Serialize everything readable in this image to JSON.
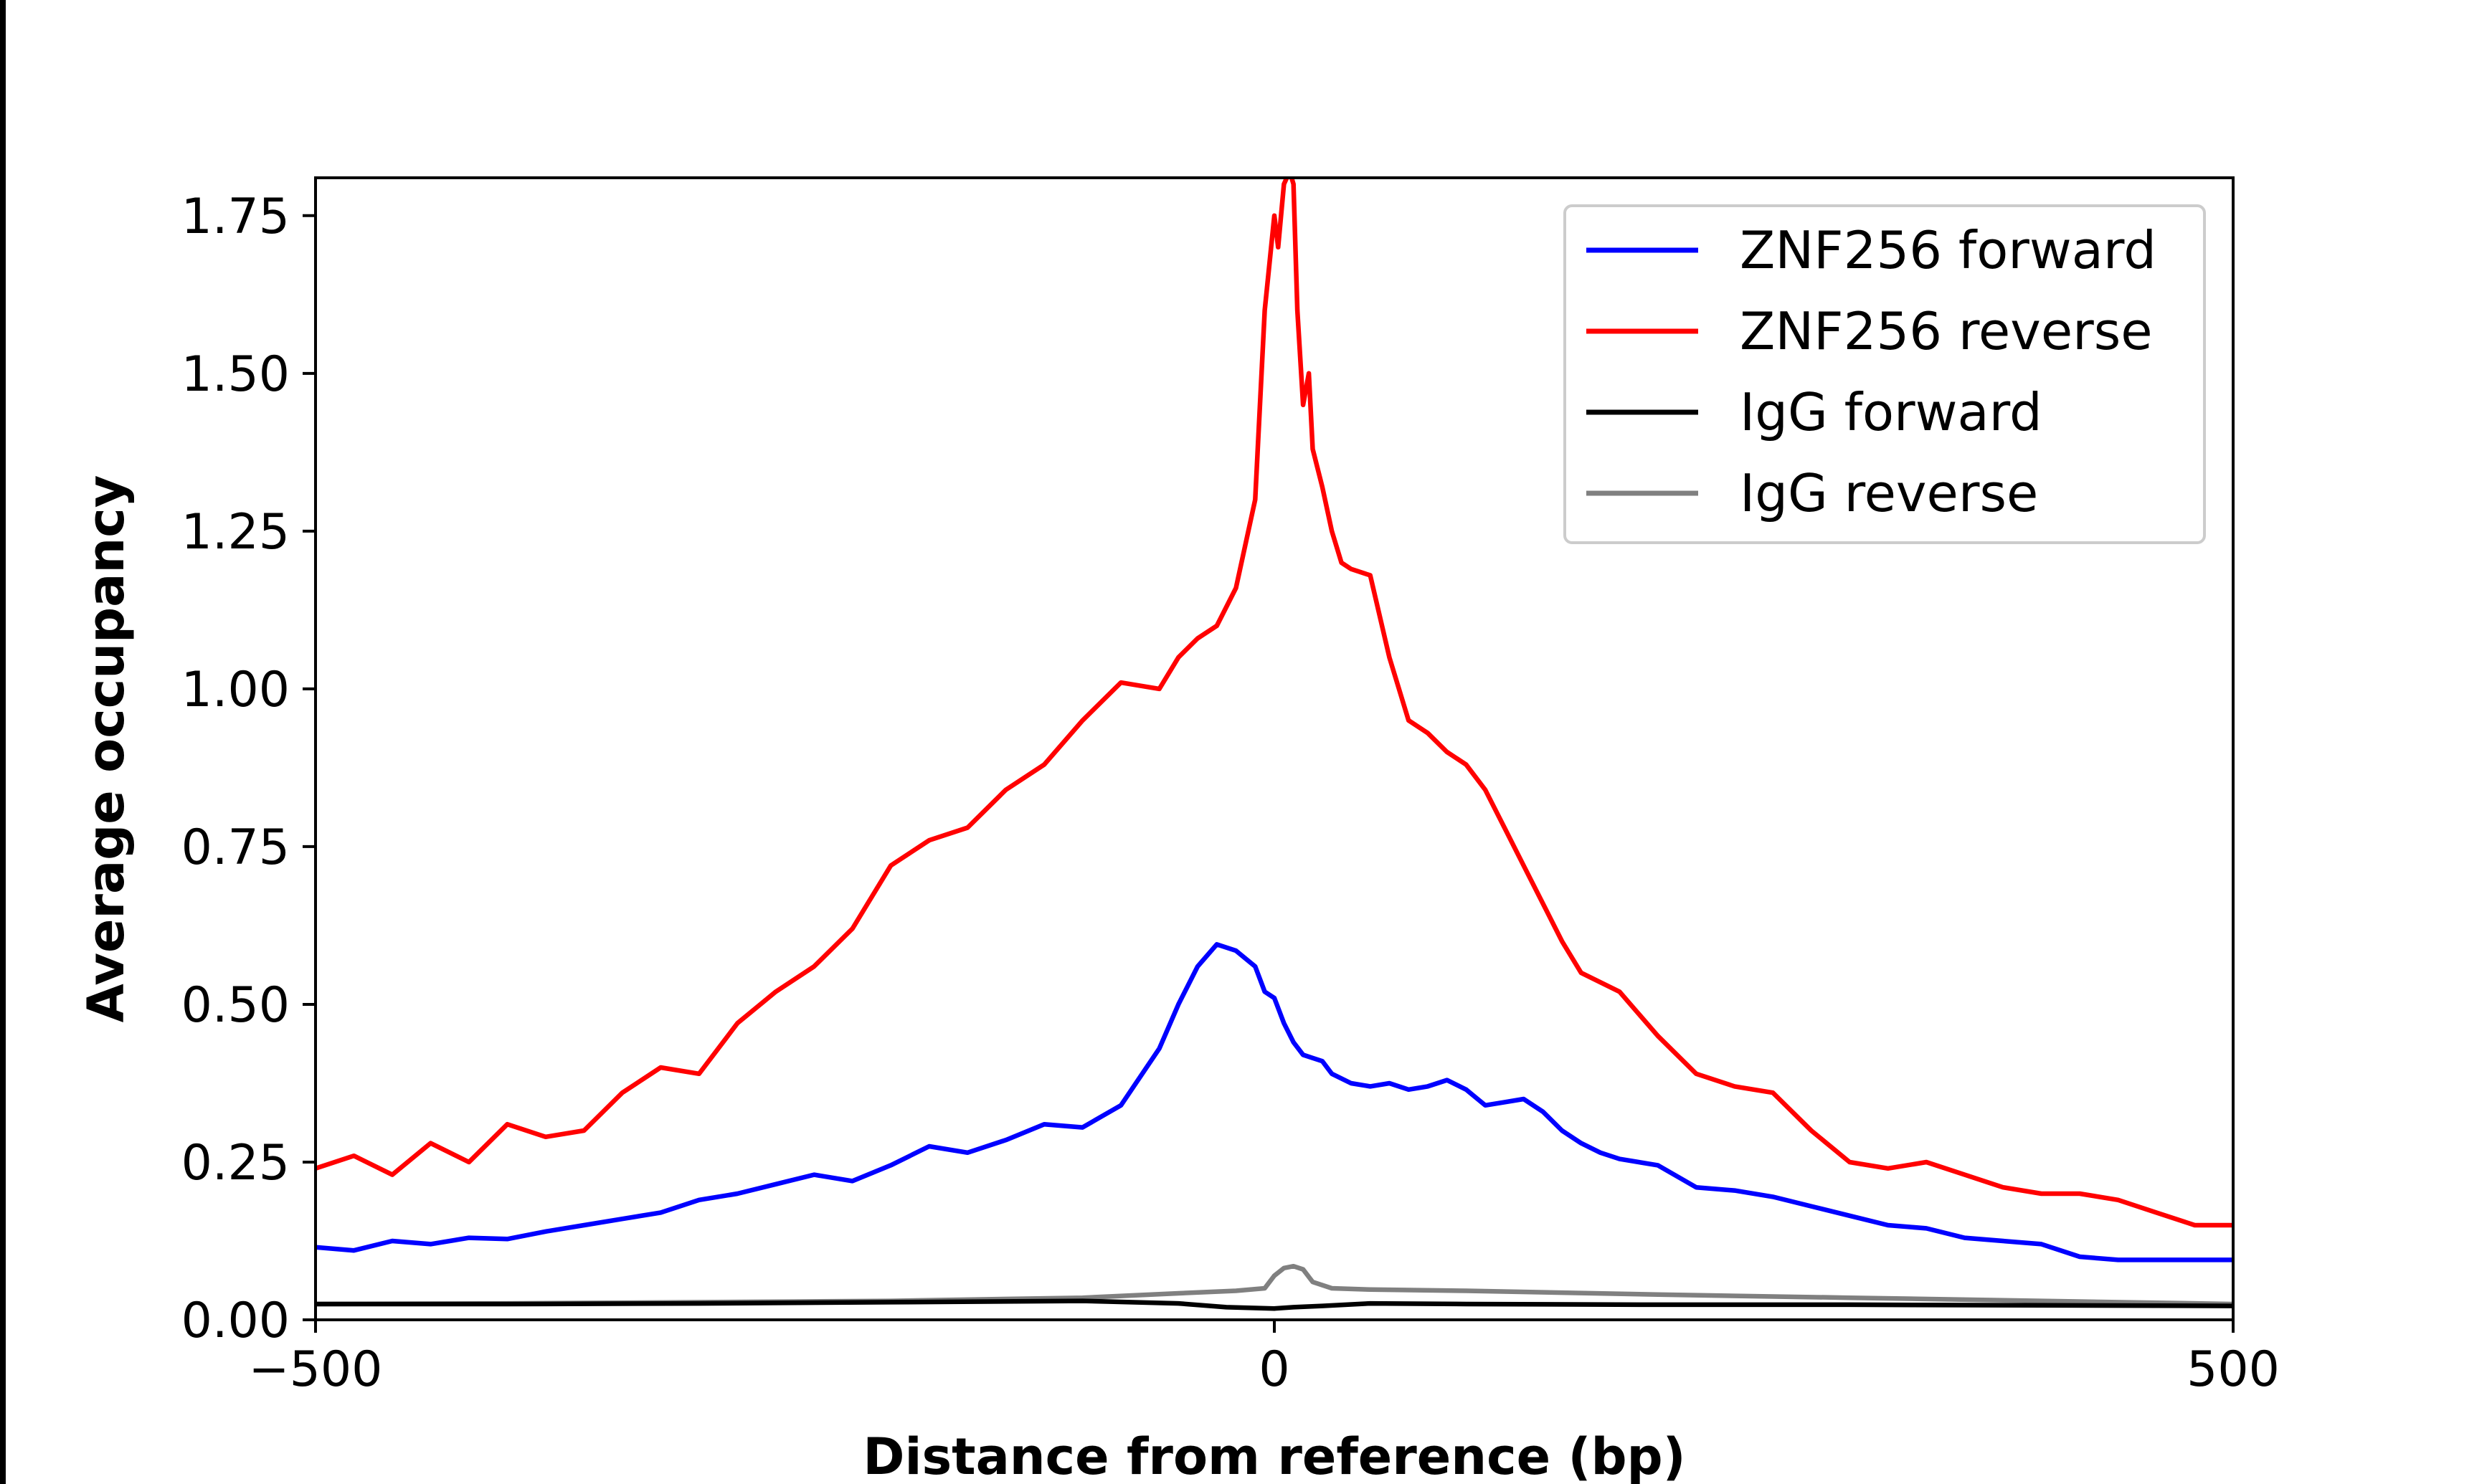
{
  "chart_data": {
    "type": "line",
    "xlabel": "Distance from reference (bp)",
    "ylabel": "Average occupancy",
    "xlim": [
      -500,
      500
    ],
    "ylim": [
      0,
      1.81
    ],
    "xticks": [
      -500,
      0,
      500
    ],
    "xtick_labels": [
      "−500",
      "0",
      "500"
    ],
    "yticks": [
      0,
      0.25,
      0.5,
      0.75,
      1.0,
      1.25,
      1.5,
      1.75
    ],
    "ytick_labels": [
      "0.00",
      "0.25",
      "0.50",
      "0.75",
      "1.00",
      "1.25",
      "1.50",
      "1.75"
    ],
    "grid": false,
    "legend_position": "top-right",
    "series": [
      {
        "name": "ZNF256 forward",
        "color": "#0000ff",
        "x": [
          -500,
          -480,
          -460,
          -440,
          -420,
          -400,
          -380,
          -360,
          -340,
          -320,
          -300,
          -280,
          -260,
          -240,
          -220,
          -200,
          -180,
          -160,
          -140,
          -120,
          -100,
          -80,
          -60,
          -50,
          -40,
          -30,
          -20,
          -10,
          -5,
          0,
          5,
          10,
          15,
          20,
          25,
          30,
          40,
          50,
          60,
          70,
          80,
          90,
          100,
          110,
          120,
          130,
          140,
          150,
          160,
          170,
          180,
          200,
          220,
          240,
          260,
          280,
          300,
          320,
          340,
          360,
          380,
          400,
          420,
          440,
          460,
          480,
          500
        ],
        "y": [
          0.115,
          0.11,
          0.125,
          0.12,
          0.13,
          0.128,
          0.14,
          0.15,
          0.16,
          0.17,
          0.19,
          0.2,
          0.215,
          0.23,
          0.22,
          0.245,
          0.275,
          0.265,
          0.285,
          0.31,
          0.305,
          0.34,
          0.43,
          0.5,
          0.56,
          0.595,
          0.585,
          0.56,
          0.52,
          0.51,
          0.47,
          0.44,
          0.42,
          0.415,
          0.41,
          0.39,
          0.375,
          0.37,
          0.375,
          0.365,
          0.37,
          0.38,
          0.365,
          0.34,
          0.345,
          0.35,
          0.33,
          0.3,
          0.28,
          0.265,
          0.255,
          0.245,
          0.21,
          0.205,
          0.195,
          0.18,
          0.165,
          0.15,
          0.145,
          0.13,
          0.125,
          0.12,
          0.1,
          0.095,
          0.095,
          0.095,
          0.095
        ]
      },
      {
        "name": "ZNF256 reverse",
        "color": "#ff0000",
        "x": [
          -500,
          -480,
          -460,
          -440,
          -420,
          -400,
          -380,
          -360,
          -340,
          -320,
          -300,
          -280,
          -260,
          -240,
          -220,
          -200,
          -180,
          -160,
          -140,
          -120,
          -100,
          -80,
          -60,
          -50,
          -40,
          -30,
          -20,
          -10,
          -5,
          0,
          2,
          5,
          8,
          10,
          12,
          15,
          18,
          20,
          25,
          30,
          35,
          40,
          50,
          60,
          70,
          80,
          90,
          100,
          110,
          120,
          130,
          140,
          150,
          160,
          180,
          200,
          220,
          240,
          260,
          280,
          300,
          320,
          340,
          360,
          380,
          400,
          420,
          440,
          460,
          480,
          500
        ],
        "y": [
          0.24,
          0.26,
          0.23,
          0.28,
          0.25,
          0.31,
          0.29,
          0.3,
          0.36,
          0.4,
          0.39,
          0.47,
          0.52,
          0.56,
          0.62,
          0.72,
          0.76,
          0.78,
          0.84,
          0.88,
          0.95,
          1.01,
          1.0,
          1.05,
          1.08,
          1.1,
          1.16,
          1.3,
          1.6,
          1.75,
          1.7,
          1.8,
          1.82,
          1.8,
          1.6,
          1.45,
          1.5,
          1.38,
          1.32,
          1.25,
          1.2,
          1.19,
          1.18,
          1.05,
          0.95,
          0.93,
          0.9,
          0.88,
          0.84,
          0.78,
          0.72,
          0.66,
          0.6,
          0.55,
          0.52,
          0.45,
          0.39,
          0.37,
          0.36,
          0.3,
          0.25,
          0.24,
          0.25,
          0.23,
          0.21,
          0.2,
          0.2,
          0.19,
          0.17,
          0.15,
          0.15
        ]
      },
      {
        "name": "IgG forward",
        "color": "#000000",
        "x": [
          -500,
          -400,
          -300,
          -200,
          -100,
          -50,
          -25,
          0,
          10,
          25,
          50,
          100,
          200,
          300,
          400,
          500
        ],
        "y": [
          0.025,
          0.025,
          0.026,
          0.028,
          0.03,
          0.026,
          0.02,
          0.018,
          0.02,
          0.022,
          0.026,
          0.025,
          0.024,
          0.024,
          0.023,
          0.022
        ]
      },
      {
        "name": "IgG reverse",
        "color": "#808080",
        "x": [
          -500,
          -400,
          -300,
          -200,
          -100,
          -50,
          -20,
          -5,
          0,
          5,
          10,
          15,
          20,
          30,
          50,
          100,
          200,
          300,
          400,
          500
        ],
        "y": [
          0.025,
          0.026,
          0.028,
          0.03,
          0.035,
          0.042,
          0.046,
          0.05,
          0.07,
          0.082,
          0.085,
          0.08,
          0.06,
          0.05,
          0.048,
          0.046,
          0.04,
          0.035,
          0.03,
          0.025
        ]
      }
    ]
  }
}
